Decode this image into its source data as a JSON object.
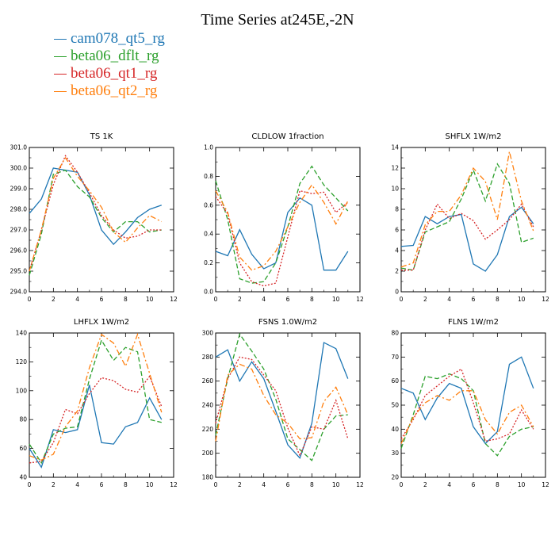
{
  "title": "Time Series at245E,-2N",
  "legend": [
    {
      "name": "cam078_qt5_rg",
      "color": "#1f77b4"
    },
    {
      "name": "beta06_dflt_rg",
      "color": "#2ca02c"
    },
    {
      "name": "beta06_qt1_rg",
      "color": "#d62728"
    },
    {
      "name": "beta06_qt2_rg",
      "color": "#ff7f0e"
    }
  ],
  "chart_data": [
    {
      "type": "line",
      "title": "TS   1K",
      "x": [
        0,
        1,
        2,
        3,
        4,
        5,
        6,
        7,
        8,
        9,
        10,
        11
      ],
      "xlim": [
        0,
        12
      ],
      "xticks": [
        0,
        2,
        4,
        6,
        8,
        10,
        12
      ],
      "ylim": [
        294.0,
        301.0
      ],
      "yticks": [
        "294.0",
        "295.0",
        "296.0",
        "297.0",
        "298.0",
        "299.0",
        "300.0",
        "301.0"
      ],
      "series": [
        {
          "name": "cam078_qt5_rg",
          "style": "solid",
          "values": [
            297.8,
            298.5,
            300.0,
            299.9,
            299.8,
            298.7,
            297.0,
            296.3,
            296.9,
            297.6,
            298.0,
            298.2
          ]
        },
        {
          "name": "beta06_dflt_rg",
          "style": "dashed",
          "values": [
            294.8,
            296.8,
            299.7,
            299.9,
            299.1,
            298.6,
            297.6,
            296.9,
            297.4,
            297.4,
            296.9,
            297.0
          ]
        },
        {
          "name": "beta06_qt1_rg",
          "style": "dotted",
          "values": [
            295.0,
            297.0,
            299.2,
            300.6,
            299.8,
            298.8,
            297.7,
            297.0,
            296.6,
            296.7,
            297.0,
            297.0
          ]
        },
        {
          "name": "beta06_qt2_rg",
          "style": "dashdot",
          "values": [
            295.0,
            297.0,
            299.5,
            300.5,
            299.6,
            298.9,
            298.1,
            296.9,
            296.4,
            297.1,
            297.7,
            297.4
          ]
        }
      ]
    },
    {
      "type": "line",
      "title": "CLDLOW   1fraction",
      "x": [
        0,
        1,
        2,
        3,
        4,
        5,
        6,
        7,
        8,
        9,
        10,
        11
      ],
      "xlim": [
        0,
        12
      ],
      "xticks": [
        0,
        2,
        4,
        6,
        8,
        10,
        12
      ],
      "ylim": [
        0.0,
        1.0
      ],
      "yticks": [
        "0.0",
        "0.2",
        "0.4",
        "0.6",
        "0.8",
        "1.0"
      ],
      "series": [
        {
          "name": "cam078_qt5_rg",
          "style": "solid",
          "values": [
            0.28,
            0.25,
            0.43,
            0.26,
            0.16,
            0.2,
            0.55,
            0.65,
            0.6,
            0.15,
            0.15,
            0.28
          ]
        },
        {
          "name": "beta06_dflt_rg",
          "style": "dashed",
          "values": [
            0.77,
            0.5,
            0.09,
            0.06,
            0.07,
            0.2,
            0.45,
            0.75,
            0.87,
            0.74,
            0.65,
            0.56
          ]
        },
        {
          "name": "beta06_qt1_rg",
          "style": "dotted",
          "values": [
            0.66,
            0.54,
            0.2,
            0.07,
            0.04,
            0.06,
            0.38,
            0.7,
            0.68,
            0.69,
            0.55,
            0.62
          ]
        },
        {
          "name": "beta06_qt2_rg",
          "style": "dashdot",
          "values": [
            0.7,
            0.55,
            0.24,
            0.15,
            0.18,
            0.28,
            0.45,
            0.62,
            0.74,
            0.62,
            0.47,
            0.63
          ]
        }
      ]
    },
    {
      "type": "line",
      "title": "SHFLX   1W/m2",
      "x": [
        0,
        1,
        2,
        3,
        4,
        5,
        6,
        7,
        8,
        9,
        10,
        11
      ],
      "xlim": [
        0,
        12
      ],
      "xticks": [
        0,
        2,
        4,
        6,
        8,
        10,
        12
      ],
      "ylim": [
        0,
        14
      ],
      "yticks": [
        "0",
        "2",
        "4",
        "6",
        "8",
        "10",
        "12",
        "14"
      ],
      "series": [
        {
          "name": "cam078_qt5_rg",
          "style": "solid",
          "values": [
            4.4,
            4.5,
            7.3,
            6.6,
            7.3,
            7.5,
            2.7,
            2.0,
            3.6,
            7.3,
            8.2,
            6.6
          ]
        },
        {
          "name": "beta06_dflt_rg",
          "style": "dashed",
          "values": [
            2.3,
            2.1,
            5.8,
            6.3,
            6.8,
            9.0,
            11.8,
            8.8,
            12.4,
            10.5,
            4.8,
            5.2
          ]
        },
        {
          "name": "beta06_qt1_rg",
          "style": "dotted",
          "values": [
            2.1,
            2.1,
            6.0,
            8.5,
            7.1,
            7.6,
            6.9,
            5.1,
            6.0,
            7.0,
            8.5,
            6.3
          ]
        },
        {
          "name": "beta06_qt2_rg",
          "style": "dashdot",
          "values": [
            2.4,
            2.8,
            6.5,
            7.8,
            7.8,
            9.4,
            12.0,
            10.7,
            7.0,
            13.6,
            8.8,
            5.9
          ]
        }
      ]
    },
    {
      "type": "line",
      "title": "LHFLX   1W/m2",
      "x": [
        0,
        1,
        2,
        3,
        4,
        5,
        6,
        7,
        8,
        9,
        10,
        11
      ],
      "xlim": [
        0,
        12
      ],
      "xticks": [
        0,
        2,
        4,
        6,
        8,
        10,
        12
      ],
      "ylim": [
        40,
        140
      ],
      "yticks": [
        "40",
        "60",
        "80",
        "100",
        "120",
        "140"
      ],
      "series": [
        {
          "name": "cam078_qt5_rg",
          "style": "solid",
          "values": [
            60,
            47,
            73,
            71,
            73,
            104,
            64,
            63,
            75,
            78,
            95,
            80
          ]
        },
        {
          "name": "beta06_dflt_rg",
          "style": "dashed",
          "values": [
            63,
            50,
            70,
            74,
            75,
            108,
            135,
            121,
            130,
            127,
            80,
            78
          ]
        },
        {
          "name": "beta06_qt1_rg",
          "style": "dotted",
          "values": [
            50,
            51,
            64,
            87,
            84,
            98,
            109,
            107,
            101,
            99,
            110,
            89
          ]
        },
        {
          "name": "beta06_qt2_rg",
          "style": "dashdot",
          "values": [
            55,
            52,
            56,
            75,
            86,
            116,
            139,
            133,
            117,
            139,
            112,
            85
          ]
        }
      ]
    },
    {
      "type": "line",
      "title": "FSNS   1.0W/m2",
      "x": [
        0,
        1,
        2,
        3,
        4,
        5,
        6,
        7,
        8,
        9,
        10,
        11
      ],
      "xlim": [
        0,
        12
      ],
      "xticks": [
        0,
        2,
        4,
        6,
        8,
        10,
        12
      ],
      "ylim": [
        180,
        300
      ],
      "yticks": [
        "180",
        "200",
        "220",
        "240",
        "260",
        "280",
        "300"
      ],
      "series": [
        {
          "name": "cam078_qt5_rg",
          "style": "solid",
          "values": [
            280,
            286,
            260,
            276,
            262,
            235,
            207,
            196,
            225,
            292,
            287,
            262
          ]
        },
        {
          "name": "beta06_dflt_rg",
          "style": "dashed",
          "values": [
            215,
            262,
            299,
            285,
            270,
            245,
            212,
            203,
            194,
            220,
            231,
            232
          ]
        },
        {
          "name": "beta06_qt1_rg",
          "style": "dotted",
          "values": [
            225,
            262,
            280,
            278,
            265,
            252,
            221,
            198,
            222,
            220,
            244,
            212
          ]
        },
        {
          "name": "beta06_qt2_rg",
          "style": "dashdot",
          "values": [
            210,
            265,
            274,
            270,
            248,
            232,
            225,
            212,
            213,
            243,
            255,
            232
          ]
        }
      ]
    },
    {
      "type": "line",
      "title": "FLNS   1W/m2",
      "x": [
        0,
        1,
        2,
        3,
        4,
        5,
        6,
        7,
        8,
        9,
        10,
        11
      ],
      "xlim": [
        0,
        12
      ],
      "xticks": [
        0,
        2,
        4,
        6,
        8,
        10,
        12
      ],
      "ylim": [
        20,
        80
      ],
      "yticks": [
        "20",
        "30",
        "40",
        "50",
        "60",
        "70",
        "80"
      ],
      "series": [
        {
          "name": "cam078_qt5_rg",
          "style": "solid",
          "values": [
            57,
            55,
            44,
            53,
            59,
            57,
            41,
            34,
            39,
            67,
            70,
            57
          ]
        },
        {
          "name": "beta06_dflt_rg",
          "style": "dashed",
          "values": [
            32,
            46,
            62,
            61,
            63,
            61,
            56,
            34,
            29,
            37,
            40,
            41
          ]
        },
        {
          "name": "beta06_qt1_rg",
          "style": "dotted",
          "values": [
            36,
            44,
            54,
            58,
            62,
            65,
            51,
            35,
            36,
            38,
            48,
            40
          ]
        },
        {
          "name": "beta06_qt2_rg",
          "style": "dashdot",
          "values": [
            34,
            45,
            51,
            54,
            52,
            56,
            56,
            44,
            38,
            47,
            50,
            41
          ]
        }
      ]
    }
  ]
}
